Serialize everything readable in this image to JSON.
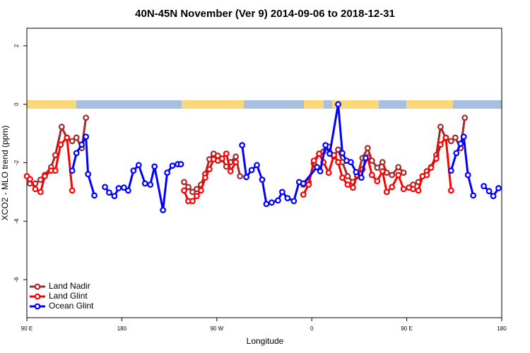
{
  "chart_data": {
    "type": "line",
    "title": "40N-45N November (Ver 9)   2014-09-06 to 2018-12-31",
    "xlabel": "Longitude",
    "ylabel": "XCO2 - MLO trend (ppm)",
    "xlim": [
      90,
      540
    ],
    "ylim": [
      -7.3,
      2.6
    ],
    "xticks": [
      {
        "value": 90,
        "label": "90 E"
      },
      {
        "value": 180,
        "label": "180"
      },
      {
        "value": 270,
        "label": "90 W"
      },
      {
        "value": 360,
        "label": "0"
      },
      {
        "value": 450,
        "label": "90 E"
      },
      {
        "value": 540,
        "label": "180"
      }
    ],
    "yticks": [
      -6,
      -4,
      -2,
      0,
      2
    ],
    "legend": "bottom-left",
    "series": [
      {
        "name": "Land Nadir",
        "color": "#a52a2a",
        "x": [
          93,
          98,
          103,
          107,
          113,
          117,
          123,
          128,
          133,
          137,
          142,
          146,
          190,
          239,
          243,
          247,
          251,
          255,
          259,
          263,
          267,
          271,
          275,
          279,
          283,
          288,
          292,
          320,
          352,
          357,
          362,
          367,
          371,
          376,
          381,
          385,
          389,
          394,
          399,
          403,
          408,
          413,
          417,
          422,
          427,
          431,
          436,
          442,
          447,
          450,
          456,
          461,
          465,
          469,
          473,
          478,
          482,
          487,
          492,
          496,
          501,
          505
        ],
        "values": [
          -2.71,
          -2.71,
          -2.58,
          -2.42,
          -2.15,
          -1.74,
          -0.77,
          -1.16,
          -1.26,
          -1.14,
          -1.5,
          -0.46,
          null,
          -2.66,
          -2.83,
          -3.0,
          -2.9,
          -2.75,
          -2.39,
          -1.88,
          -1.69,
          -1.76,
          -1.88,
          -2.13,
          -1.98,
          -1.79,
          -2.46,
          null,
          -2.75,
          -2.66,
          -2.03,
          -1.69,
          -1.62,
          -1.45,
          -1.79,
          -1.55,
          -1.98,
          -2.46,
          -2.66,
          -2.46,
          -1.84,
          -1.5,
          -1.93,
          -2.17,
          -1.98,
          -2.34,
          -2.42,
          -2.15,
          -2.34,
          null,
          -2.75,
          -2.66,
          -2.46,
          -2.29,
          -2.15,
          -1.74,
          -0.77,
          -1.16,
          -1.26,
          -1.14,
          -1.5,
          -0.46
        ]
      },
      {
        "name": "Land Glint",
        "color": "#ff0000",
        "x": [
          90,
          93,
          98,
          103,
          107,
          113,
          117,
          122,
          128,
          133,
          200,
          239,
          243,
          247,
          251,
          255,
          259,
          263,
          267,
          271,
          275,
          279,
          283,
          288,
          320,
          352,
          357,
          362,
          367,
          371,
          376,
          381,
          385,
          389,
          394,
          399,
          403,
          408,
          413,
          417,
          422,
          427,
          431,
          436,
          442,
          447,
          452,
          456,
          461,
          465,
          469,
          473,
          478,
          482,
          487,
          492
        ],
        "values": [
          -2.46,
          -2.56,
          -2.9,
          -3.0,
          -2.46,
          -2.27,
          -2.27,
          -1.38,
          -1.14,
          -2.95,
          null,
          -2.95,
          -3.31,
          -3.31,
          -3.14,
          -2.95,
          -2.51,
          -2.22,
          -1.88,
          -1.93,
          -1.86,
          -1.69,
          -2.29,
          -1.98,
          null,
          -3.09,
          -2.75,
          -1.93,
          -1.69,
          -1.98,
          -2.34,
          -1.74,
          -1.98,
          -2.51,
          -2.75,
          -2.85,
          -2.42,
          -2.22,
          -1.81,
          -2.42,
          -2.63,
          -2.29,
          -3.0,
          -2.83,
          -2.42,
          -2.9,
          -2.85,
          -2.9,
          -2.95,
          -2.46,
          -2.42,
          -2.17,
          -1.86,
          -1.38,
          -1.14,
          -2.95
        ]
      },
      {
        "name": "Ocean Glint",
        "color": "#0000ff",
        "x": [
          133,
          137,
          142,
          146,
          148,
          154,
          159,
          164,
          168,
          173,
          177,
          182,
          186,
          191,
          196,
          202,
          207,
          211,
          219,
          223,
          228,
          233,
          236,
          265,
          294,
          298,
          303,
          308,
          313,
          317,
          322,
          328,
          332,
          337,
          343,
          348,
          352,
          365,
          368,
          373,
          377,
          385,
          389,
          393,
          397,
          402,
          407,
          411,
          450,
          492,
          497,
          501,
          504,
          508,
          513,
          518,
          523,
          528,
          532,
          537
        ],
        "values": [
          -2.27,
          -1.67,
          -1.38,
          -1.11,
          -2.39,
          -3.12,
          null,
          -2.83,
          -3.02,
          -3.14,
          -2.87,
          -2.85,
          -2.95,
          -2.27,
          -2.08,
          -2.71,
          -2.75,
          -2.13,
          -3.62,
          -2.34,
          -2.1,
          -2.05,
          -2.05,
          null,
          -1.4,
          -2.49,
          -2.25,
          -2.08,
          -2.58,
          -3.41,
          -3.36,
          -3.29,
          -3.0,
          -3.21,
          -3.31,
          -2.66,
          -2.71,
          -2.15,
          -2.29,
          -1.4,
          -1.69,
          0,
          -1.67,
          -1.93,
          -1.98,
          -2.32,
          -2.51,
          -1.84,
          null,
          -2.27,
          -1.67,
          -1.35,
          -1.11,
          -2.42,
          -3.12,
          null,
          -2.8,
          -2.97,
          -3.14,
          -2.87
        ]
      }
    ]
  }
}
